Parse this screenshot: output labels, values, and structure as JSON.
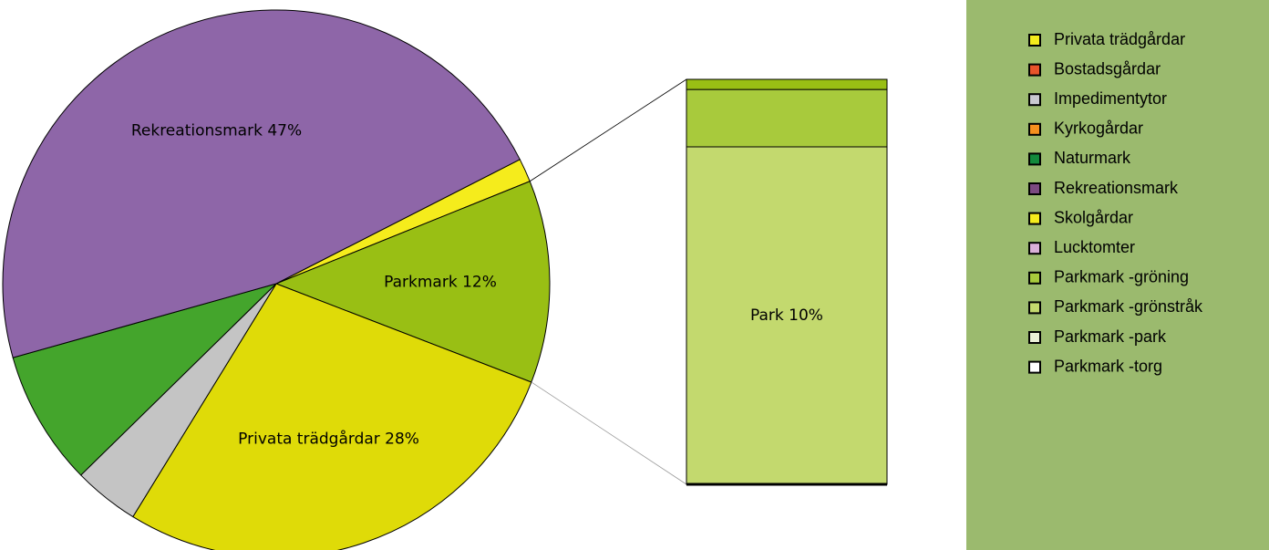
{
  "chart_data": {
    "type": "pie",
    "categories": [
      "Skolgårdar",
      "Parkmark",
      "Privata trädgårdar",
      "Impedimentytor",
      "Naturmark",
      "Rekreationsmark"
    ],
    "values": [
      1.4,
      12,
      28,
      3.9,
      8,
      47
    ],
    "value_labels": [
      null,
      "Parkmark 12%",
      "Privata trädgårdar 28%",
      null,
      null,
      "Rekreationsmark 47%"
    ],
    "colors": [
      "#f5ec1c",
      "#99bf14",
      "#dfdb08",
      "#c4c4c4",
      "#44a52c",
      "#8e66a8"
    ],
    "breakdown": {
      "of": 1,
      "values": [
        10,
        1.7,
        0.3
      ],
      "colors": [
        "#c3d96e",
        "#a8ca3c",
        "#99bf14"
      ],
      "label": "Park 10%"
    },
    "legend": {
      "names": [
        "Privata trädgårdar",
        "Bostadsgårdar",
        "Impedimentytor",
        "Kyrkogårdar",
        "Naturmark",
        "Rekreationsmark",
        "Skolgårdar",
        "Lucktomter",
        "Parkmark -gröning",
        "Parkmark -grönstråk",
        "Parkmark -park",
        "Parkmark -torg"
      ],
      "colors": [
        "#f5ec1c",
        "#e8542a",
        "#c9c9d0",
        "#f5901e",
        "#138a3c",
        "#7b4a80",
        "#f5ec1c",
        "#d9b0d8",
        "#a8ca3c",
        "#c3d96e",
        "#ebf0d8",
        "#ffffff"
      ],
      "background": "#9bba6e"
    }
  }
}
